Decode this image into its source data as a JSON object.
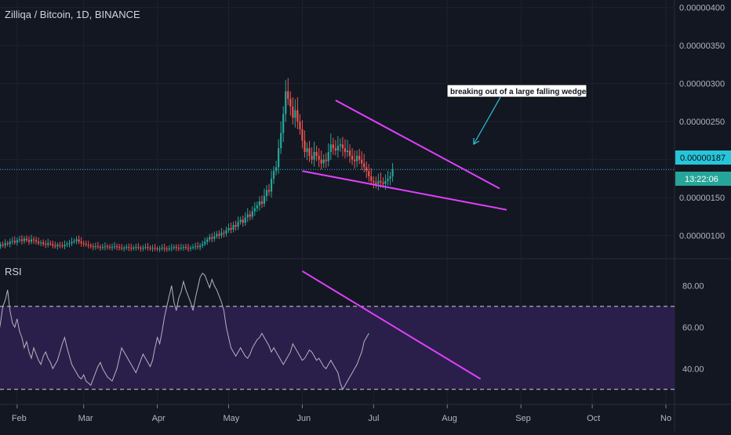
{
  "header": {
    "title": "Zilliqa / Bitcoin, 1D, BINANCE"
  },
  "rsi_panel": {
    "label": "RSI"
  },
  "price_badge": {
    "price": "0.00000187",
    "countdown": "13:22:06"
  },
  "annotation": {
    "text": "breaking out of a large falling wedge"
  },
  "colors": {
    "background": "#131722",
    "up": "#26a69a",
    "down": "#ef5350",
    "trendline": "#e040fb",
    "rsi_line": "#b2b5be",
    "rsi_band": "#2a1f4a",
    "price_line": "#26c6da"
  },
  "chart_data": [
    {
      "type": "candlestick",
      "title": "Zilliqa / Bitcoin, 1D, BINANCE",
      "x_ticks": [
        "Feb",
        "Mar",
        "Apr",
        "May",
        "Jun",
        "Jul",
        "Aug",
        "Sep",
        "Oct",
        "No"
      ],
      "y_ticks": [
        "0.00000100",
        "0.00000150",
        "0.00000200",
        "0.00000250",
        "0.00000300",
        "0.00000350",
        "0.00000400"
      ],
      "ylim": [
        7.8e-07,
        4.1e-06
      ],
      "last_price": 1.87e-06,
      "price_trendlines": [
        {
          "x1": "Jun 15",
          "y1": 2.78e-06,
          "x2": "Aug 23",
          "y2": 1.62e-06
        },
        {
          "x1": "Jun 1",
          "y1": 1.85e-06,
          "x2": "Aug 26",
          "y2": 1.34e-06
        }
      ],
      "closes": [
        8.4e-07,
        8.5e-07,
        8.3e-07,
        8.6e-07,
        8.8e-07,
        8.7e-07,
        9e-07,
        8.9e-07,
        9.2e-07,
        9.3e-07,
        9.1e-07,
        9.4e-07,
        9.5e-07,
        9.3e-07,
        9.6e-07,
        9.4e-07,
        9.2e-07,
        9.5e-07,
        9.4e-07,
        9.2e-07,
        9e-07,
        9.1e-07,
        8.9e-07,
        8.8e-07,
        9e-07,
        8.9e-07,
        8.7e-07,
        8.6e-07,
        8.8e-07,
        8.7e-07,
        8.6e-07,
        8.8e-07,
        8.9e-07,
        9e-07,
        9.2e-07,
        9.3e-07,
        9.5e-07,
        9.2e-07,
        9e-07,
        8.9e-07,
        8.8e-07,
        8.7e-07,
        8.6e-07,
        8.5e-07,
        8.6e-07,
        8.5e-07,
        8.4e-07,
        8.5e-07,
        8.6e-07,
        8.5e-07,
        8.4e-07,
        8.5e-07,
        8.6e-07,
        8.5e-07,
        8.4e-07,
        8.3e-07,
        8.4e-07,
        8.5e-07,
        8.4e-07,
        8.3e-07,
        8.4e-07,
        8.5e-07,
        8.4e-07,
        8.3e-07,
        8.4e-07,
        8.5e-07,
        8.4e-07,
        8.3e-07,
        8.4e-07,
        8.3e-07,
        8.2e-07,
        8.3e-07,
        8.4e-07,
        8.3e-07,
        8.2e-07,
        8.3e-07,
        8.4e-07,
        8.5e-07,
        8.4e-07,
        8.3e-07,
        8.4e-07,
        8.5e-07,
        8.4e-07,
        8.3e-07,
        8.4e-07,
        8.5e-07,
        8.6e-07,
        8.5e-07,
        8.7e-07,
        8.9e-07,
        9.2e-07,
        9.5e-07,
        9.8e-07,
        9.6e-07,
        9.9e-07,
        1.02e-06,
        1e-06,
        1.04e-06,
        1.03e-06,
        1.07e-06,
        1.1e-06,
        1.08e-06,
        1.14e-06,
        1.12e-06,
        1.18e-06,
        1.21e-06,
        1.17e-06,
        1.24e-06,
        1.28e-06,
        1.25e-06,
        1.32e-06,
        1.36e-06,
        1.4e-06,
        1.45e-06,
        1.42e-06,
        1.52e-06,
        1.6e-06,
        1.58e-06,
        1.75e-06,
        1.85e-06,
        1.9e-06,
        2.15e-06,
        2.35e-06,
        2.6e-06,
        2.9e-06,
        2.8e-06,
        2.7e-06,
        2.55e-06,
        2.65e-06,
        2.5e-06,
        2.4e-06,
        2.25e-06,
        2.1e-06,
        2.15e-06,
        2.05e-06,
        2e-06,
        2.1e-06,
        2.05e-06,
        2e-06,
        1.95e-06,
        2e-06,
        1.98e-06,
        2.1e-06,
        2.2e-06,
        2.15e-06,
        2.12e-06,
        2.18e-06,
        2.2e-06,
        2.15e-06,
        2.1e-06,
        2.12e-06,
        2.05e-06,
        2e-06,
        1.98e-06,
        2.05e-06,
        2e-06,
        1.95e-06,
        1.9e-06,
        1.85e-06,
        1.78e-06,
        1.72e-06,
        1.7e-06,
        1.68e-06,
        1.72e-06,
        1.7e-06,
        1.68e-06,
        1.72e-06,
        1.75e-06,
        1.78e-06,
        1.87e-06
      ]
    },
    {
      "type": "line",
      "title": "RSI",
      "y_ticks": [
        "80.00",
        "60.00",
        "40.00"
      ],
      "ylim": [
        25,
        90
      ],
      "bands": [
        70,
        30
      ],
      "rsi_trendline": {
        "x1": "Jun 1",
        "y1": 87,
        "x2": "Aug 15",
        "y2": 35
      },
      "values": [
        45,
        42,
        48,
        55,
        62,
        70,
        73,
        78,
        68,
        62,
        60,
        64,
        58,
        55,
        50,
        53,
        48,
        45,
        50,
        47,
        44,
        42,
        46,
        48,
        45,
        43,
        40,
        42,
        44,
        48,
        52,
        55,
        50,
        46,
        42,
        40,
        38,
        36,
        35,
        37,
        34,
        33,
        32,
        35,
        38,
        41,
        43,
        40,
        38,
        36,
        35,
        34,
        37,
        40,
        45,
        50,
        48,
        46,
        44,
        42,
        40,
        38,
        41,
        44,
        47,
        45,
        43,
        41,
        44,
        50,
        55,
        52,
        58,
        65,
        70,
        75,
        80,
        72,
        68,
        74,
        77,
        82,
        78,
        75,
        72,
        68,
        74,
        79,
        84,
        86,
        85,
        82,
        79,
        83,
        80,
        78,
        75,
        72,
        68,
        60,
        55,
        50,
        48,
        46,
        48,
        50,
        48,
        46,
        45,
        47,
        50,
        52,
        54,
        55,
        57,
        55,
        53,
        51,
        48,
        50,
        48,
        46,
        44,
        42,
        44,
        46,
        48,
        52,
        50,
        48,
        46,
        44,
        45,
        47,
        49,
        48,
        46,
        44,
        45,
        43,
        41,
        40,
        42,
        44,
        42,
        40,
        38,
        33,
        30,
        32,
        34,
        36,
        38,
        40,
        42,
        45,
        48,
        53,
        55,
        57
      ]
    }
  ]
}
